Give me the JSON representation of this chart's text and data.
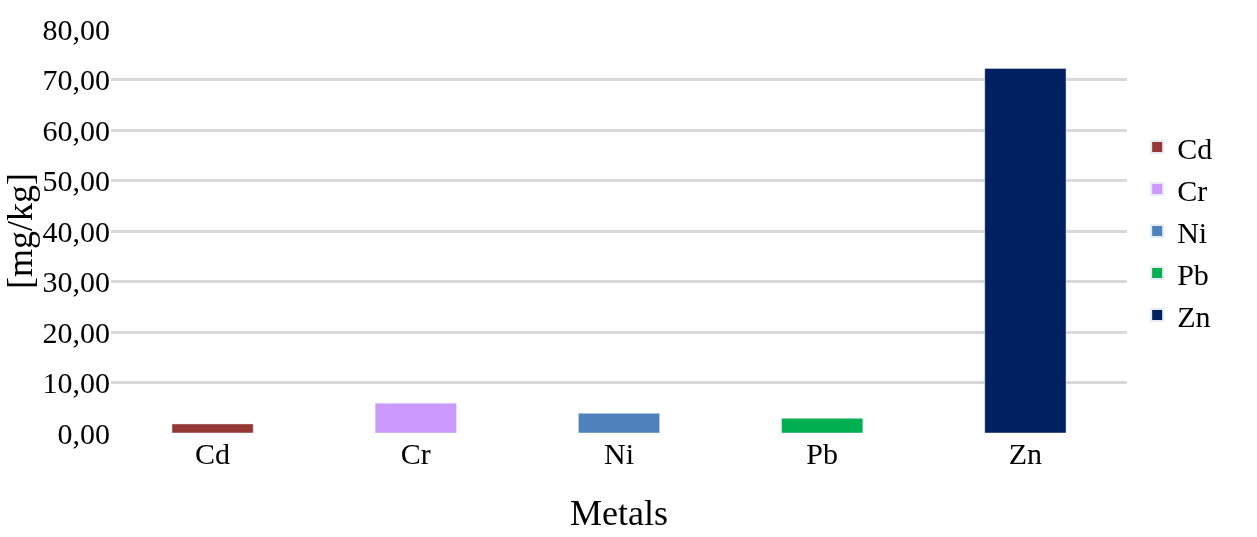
{
  "chart_data": {
    "type": "bar",
    "xlabel": "Metals",
    "ylabel": "[mg/kg]",
    "categories": [
      "Cd",
      "Cr",
      "Ni",
      "Pb",
      "Zn"
    ],
    "series": [
      {
        "name": "Cd",
        "color": "#953735",
        "values": [
          1.8,
          null,
          null,
          null,
          null
        ]
      },
      {
        "name": "Cr",
        "color": "#cc99ff",
        "values": [
          null,
          5.9,
          null,
          null,
          null
        ]
      },
      {
        "name": "Ni",
        "color": "#4f81bd",
        "values": [
          null,
          null,
          3.9,
          null,
          null
        ]
      },
      {
        "name": "Pb",
        "color": "#00b050",
        "values": [
          null,
          null,
          null,
          2.9,
          null
        ]
      },
      {
        "name": "Zn",
        "color": "#002060",
        "values": [
          null,
          null,
          null,
          null,
          72.2
        ]
      }
    ],
    "ylim": [
      0,
      80
    ],
    "yticks": [
      {
        "value": 0,
        "label": "0,00"
      },
      {
        "value": 10,
        "label": "10,00"
      },
      {
        "value": 20,
        "label": "20,00"
      },
      {
        "value": 30,
        "label": "30,00"
      },
      {
        "value": 40,
        "label": "40,00"
      },
      {
        "value": 50,
        "label": "50,00"
      },
      {
        "value": 60,
        "label": "60,00"
      },
      {
        "value": 70,
        "label": "70,00"
      },
      {
        "value": 80,
        "label": "80,00"
      }
    ],
    "grid": "y",
    "legend": "right"
  }
}
